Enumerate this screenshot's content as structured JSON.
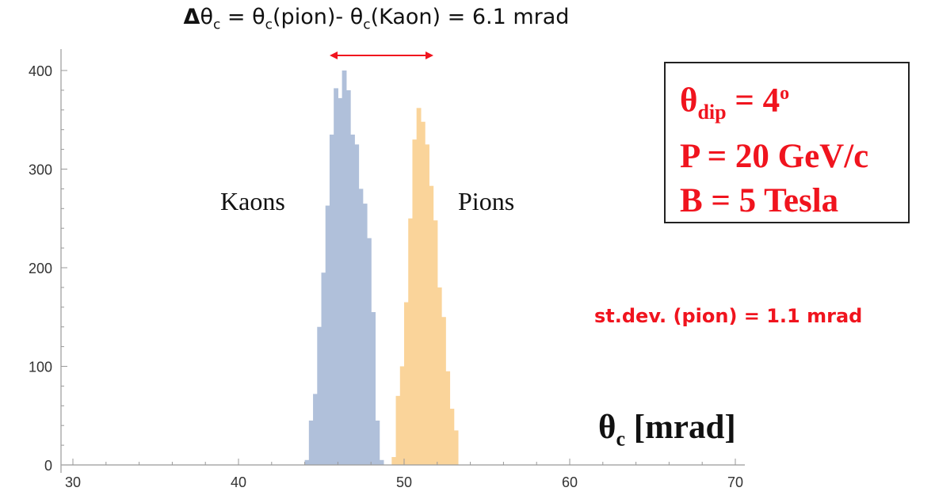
{
  "title": {
    "delta_symbol": "Δ",
    "theta": "θ",
    "sub_c": "c",
    "eq1": " = ",
    "pion_part": "(pion)- ",
    "kaon_part": "(Kaon) = 6.1 mrad"
  },
  "params": {
    "line1_theta": "θ",
    "line1_sub": "dip",
    "line1_eq": " = 4",
    "line1_sup": "o",
    "line2": "P = 20 GeV/c",
    "line3": "B = 5 Tesla"
  },
  "stdev_text": "st.dev. (pion) = 1.1 mrad",
  "xlabel": {
    "theta": "θ",
    "sub": "c",
    "rest": " [mrad]"
  },
  "colors": {
    "kaon": "#b0c0da",
    "pion": "#fad49a",
    "annotation": "#f0141e",
    "axis": "#999999"
  },
  "chart_data": {
    "type": "bar",
    "xlim": [
      30,
      70
    ],
    "ylim": [
      0,
      400
    ],
    "xticks": [
      30,
      40,
      50,
      60,
      70
    ],
    "yticks": [
      0,
      100,
      200,
      300,
      400
    ],
    "grid": false,
    "bin_width": 0.25,
    "series": [
      {
        "name": "Kaons",
        "x_start": 44.0,
        "values": [
          5,
          45,
          72,
          140,
          195,
          263,
          335,
          382,
          372,
          400,
          380,
          335,
          325,
          280,
          265,
          230,
          155,
          45,
          5
        ]
      },
      {
        "name": "Pions",
        "x_start": 49.25,
        "values": [
          8,
          70,
          100,
          165,
          250,
          330,
          362,
          348,
          325,
          283,
          248,
          180,
          150,
          95,
          57,
          35
        ]
      }
    ],
    "annotations": [
      {
        "text": "Kaons"
      },
      {
        "text": "Pions"
      }
    ]
  }
}
